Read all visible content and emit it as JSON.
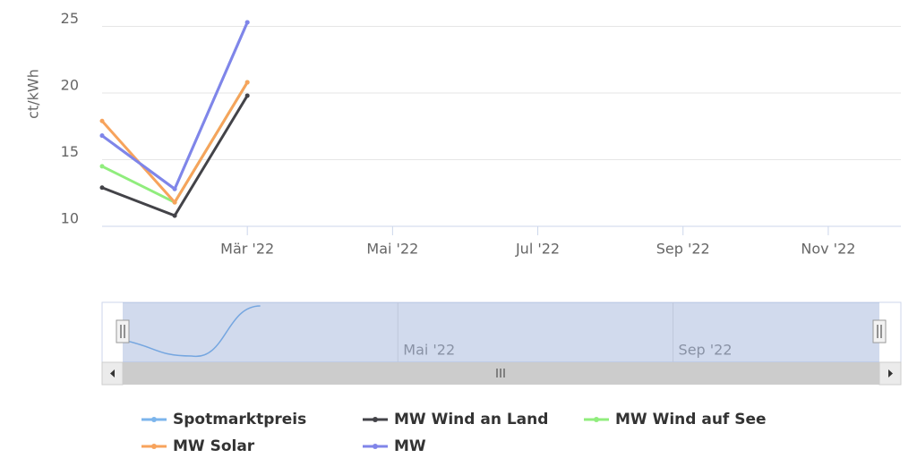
{
  "chart_data": {
    "type": "line",
    "y_label": "ct/kWh",
    "x": [
      1,
      2,
      3
    ],
    "xlim": [
      1,
      12
    ],
    "xticks": [
      {
        "value": 3,
        "label": "Mär '22"
      },
      {
        "value": 5,
        "label": "Mai '22"
      },
      {
        "value": 7,
        "label": "Jul '22"
      },
      {
        "value": 9,
        "label": "Sep '22"
      },
      {
        "value": 11,
        "label": "Nov '22"
      }
    ],
    "ylim": [
      10,
      25.5
    ],
    "yticks": [
      10,
      15,
      20,
      25
    ],
    "grid": true,
    "series": [
      {
        "name": "Spotmarktpreis",
        "color": "#7cb5ec",
        "values": [
          16.8,
          12.8,
          25.3
        ]
      },
      {
        "name": "MW Wind an Land",
        "color": "#434348",
        "values": [
          12.9,
          10.8,
          19.8
        ]
      },
      {
        "name": "MW Wind auf See",
        "color": "#90ed7d",
        "values": [
          14.5,
          11.8,
          20.8
        ]
      },
      {
        "name": "MW Solar",
        "color": "#f7a35c",
        "values": [
          17.9,
          11.8,
          20.8
        ]
      },
      {
        "name": "MW",
        "color": "#8085e9",
        "values": [
          16.8,
          12.8,
          25.3
        ]
      }
    ],
    "navigator": {
      "xticks": [
        {
          "value": 5,
          "label": "Mai '22"
        },
        {
          "value": 9,
          "label": "Sep '22"
        }
      ]
    }
  }
}
